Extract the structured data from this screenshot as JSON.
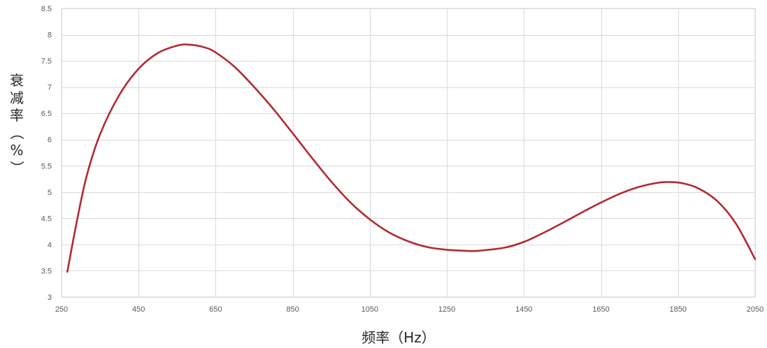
{
  "chart_data": {
    "type": "line",
    "title": "",
    "xlabel": "频率（Hz）",
    "ylabel": "衰减率（%）",
    "ylabel_chars": [
      "衰",
      "减",
      "率",
      "（",
      "%",
      "）"
    ],
    "x_ticks": [
      250,
      450,
      650,
      850,
      1050,
      1250,
      1450,
      1650,
      1850,
      2050
    ],
    "y_ticks": [
      3,
      3.5,
      4,
      4.5,
      5,
      5.5,
      6,
      6.5,
      7,
      7.5,
      8,
      8.5
    ],
    "x_tick_labels": [
      "250",
      "450",
      "650",
      "850",
      "1050",
      "1250",
      "1450",
      "1650",
      "1850",
      "2050"
    ],
    "y_tick_labels": [
      "3",
      "3.5",
      "4",
      "4.5",
      "5",
      "5.5",
      "6",
      "6.5",
      "7",
      "7.5",
      "8",
      "8.5"
    ],
    "xlim": [
      250,
      2050
    ],
    "ylim": [
      3,
      8.5
    ],
    "grid": true,
    "legend": "none",
    "series": [
      {
        "color": "#b22a32",
        "x": [
          265,
          290,
          315,
          350,
          400,
          450,
          500,
          550,
          580,
          620,
          650,
          700,
          750,
          800,
          850,
          900,
          950,
          1000,
          1050,
          1100,
          1150,
          1200,
          1250,
          1300,
          1330,
          1400,
          1450,
          1500,
          1550,
          1600,
          1650,
          1700,
          1750,
          1800,
          1830,
          1860,
          1900,
          1950,
          2000,
          2050
        ],
        "y": [
          3.48,
          4.45,
          5.3,
          6.1,
          6.85,
          7.35,
          7.65,
          7.79,
          7.81,
          7.76,
          7.66,
          7.38,
          7.0,
          6.58,
          6.12,
          5.65,
          5.2,
          4.8,
          4.48,
          4.23,
          4.06,
          3.95,
          3.9,
          3.88,
          3.88,
          3.94,
          4.05,
          4.22,
          4.41,
          4.61,
          4.8,
          4.97,
          5.1,
          5.18,
          5.19,
          5.17,
          5.08,
          4.84,
          4.4,
          3.72
        ]
      }
    ]
  }
}
